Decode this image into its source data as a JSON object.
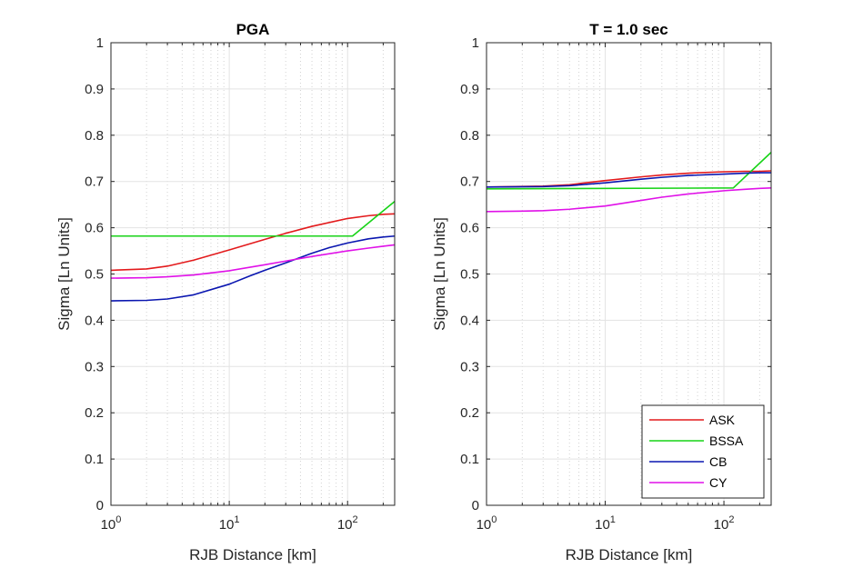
{
  "chart_data": [
    {
      "type": "line",
      "title": "PGA",
      "xlabel": "RJB Distance [km]",
      "ylabel": "Sigma [Ln Units]",
      "xscale": "log",
      "xlim": [
        1,
        250
      ],
      "ylim": [
        0,
        1
      ],
      "xticks": [
        {
          "value": 1,
          "base": "10",
          "exp": "0"
        },
        {
          "value": 10,
          "base": "10",
          "exp": "1"
        },
        {
          "value": 100,
          "base": "10",
          "exp": "2"
        }
      ],
      "yticks": [
        "0",
        "0.1",
        "0.2",
        "0.3",
        "0.4",
        "0.5",
        "0.6",
        "0.7",
        "0.8",
        "0.9",
        "1"
      ],
      "grid": true,
      "series": [
        {
          "name": "ASK",
          "color": "#e31a1c",
          "x": [
            1,
            2,
            3,
            5,
            10,
            20,
            30,
            50,
            100,
            150,
            200,
            250
          ],
          "y": [
            0.508,
            0.511,
            0.517,
            0.53,
            0.552,
            0.575,
            0.588,
            0.603,
            0.62,
            0.626,
            0.629,
            0.63
          ]
        },
        {
          "name": "BSSA",
          "color": "#17d317",
          "x": [
            1,
            110,
            250
          ],
          "y": [
            0.582,
            0.582,
            0.657
          ]
        },
        {
          "name": "CB",
          "color": "#0a16b0",
          "x": [
            1,
            2,
            3,
            5,
            10,
            15,
            20,
            30,
            50,
            70,
            100,
            150,
            200,
            250
          ],
          "y": [
            0.442,
            0.443,
            0.446,
            0.455,
            0.478,
            0.496,
            0.508,
            0.524,
            0.545,
            0.557,
            0.567,
            0.576,
            0.58,
            0.582
          ]
        },
        {
          "name": "CY",
          "color": "#e011e8",
          "x": [
            1,
            2,
            3,
            5,
            10,
            20,
            30,
            50,
            100,
            150,
            200,
            250
          ],
          "y": [
            0.491,
            0.492,
            0.494,
            0.498,
            0.507,
            0.52,
            0.528,
            0.538,
            0.55,
            0.556,
            0.56,
            0.563
          ]
        }
      ]
    },
    {
      "type": "line",
      "title": "T = 1.0 sec",
      "xlabel": "RJB Distance [km]",
      "ylabel": "Sigma [Ln Units]",
      "xscale": "log",
      "xlim": [
        1,
        250
      ],
      "ylim": [
        0,
        1
      ],
      "xticks": [
        {
          "value": 1,
          "base": "10",
          "exp": "0"
        },
        {
          "value": 10,
          "base": "10",
          "exp": "1"
        },
        {
          "value": 100,
          "base": "10",
          "exp": "2"
        }
      ],
      "yticks": [
        "0",
        "0.1",
        "0.2",
        "0.3",
        "0.4",
        "0.5",
        "0.6",
        "0.7",
        "0.8",
        "0.9",
        "1"
      ],
      "grid": true,
      "legend": "bottom-right",
      "series": [
        {
          "name": "ASK",
          "color": "#e31a1c",
          "x": [
            1,
            3,
            5,
            10,
            20,
            30,
            50,
            100,
            150,
            200,
            250
          ],
          "y": [
            0.688,
            0.69,
            0.693,
            0.702,
            0.71,
            0.714,
            0.718,
            0.721,
            0.722,
            0.722,
            0.723
          ]
        },
        {
          "name": "BSSA",
          "color": "#17d317",
          "x": [
            1,
            120,
            250
          ],
          "y": [
            0.684,
            0.686,
            0.763
          ]
        },
        {
          "name": "CB",
          "color": "#0a16b0",
          "x": [
            1,
            3,
            5,
            10,
            20,
            30,
            50,
            100,
            150,
            200,
            250
          ],
          "y": [
            0.688,
            0.689,
            0.691,
            0.697,
            0.705,
            0.709,
            0.713,
            0.716,
            0.718,
            0.719,
            0.719
          ]
        },
        {
          "name": "CY",
          "color": "#e011e8",
          "x": [
            1,
            2,
            3,
            5,
            10,
            20,
            30,
            50,
            100,
            150,
            200,
            250
          ],
          "y": [
            0.635,
            0.636,
            0.637,
            0.64,
            0.647,
            0.659,
            0.666,
            0.673,
            0.68,
            0.683,
            0.685,
            0.686
          ]
        }
      ]
    }
  ]
}
